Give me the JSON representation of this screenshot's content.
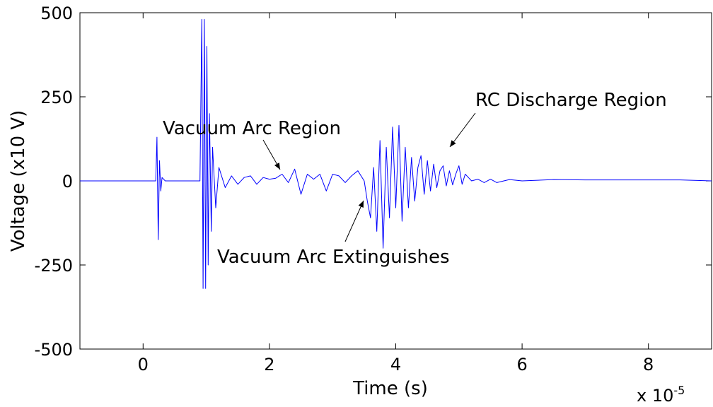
{
  "chart_data": {
    "type": "line",
    "xlabel": "Time (s)",
    "ylabel": "Voltage (x10 V)",
    "x_exponent_base": "x 10",
    "x_exponent_power": "-5",
    "xlim": [
      -1,
      9
    ],
    "ylim": [
      -500,
      500
    ],
    "x_ticks": [
      0,
      2,
      4,
      6,
      8
    ],
    "x_tick_labels": [
      "0",
      "2",
      "4",
      "6",
      "8"
    ],
    "y_ticks": [
      500,
      250,
      0,
      -250,
      -500
    ],
    "y_tick_labels": [
      "500",
      "250",
      "0",
      "-250",
      "-500"
    ],
    "grid": false,
    "series": [
      {
        "color": "#0000ff",
        "x": [
          -1,
          0.1,
          0.2,
          0.22,
          0.24,
          0.26,
          0.28,
          0.3,
          0.35,
          0.4,
          0.5,
          0.6,
          0.8,
          0.9,
          0.93,
          0.95,
          0.97,
          0.99,
          1.01,
          1.03,
          1.05,
          1.08,
          1.1,
          1.15,
          1.2,
          1.3,
          1.4,
          1.5,
          1.6,
          1.7,
          1.8,
          1.9,
          2.0,
          2.1,
          2.2,
          2.3,
          2.4,
          2.5,
          2.6,
          2.7,
          2.8,
          2.9,
          3.0,
          3.1,
          3.2,
          3.3,
          3.4,
          3.5,
          3.55,
          3.6,
          3.65,
          3.7,
          3.75,
          3.8,
          3.85,
          3.9,
          3.95,
          4.0,
          4.05,
          4.1,
          4.15,
          4.2,
          4.25,
          4.3,
          4.35,
          4.4,
          4.45,
          4.5,
          4.55,
          4.6,
          4.65,
          4.7,
          4.75,
          4.8,
          4.85,
          4.9,
          4.95,
          5.0,
          5.05,
          5.1,
          5.15,
          5.2,
          5.3,
          5.4,
          5.5,
          5.6,
          5.8,
          6.0,
          6.5,
          7.0,
          7.5,
          8.0,
          8.5,
          9.0
        ],
        "y": [
          0,
          0,
          0,
          130,
          -175,
          60,
          -30,
          10,
          0,
          0,
          0,
          0,
          0,
          0,
          480,
          -320,
          480,
          -320,
          400,
          -250,
          200,
          -150,
          100,
          -80,
          40,
          -20,
          15,
          -10,
          10,
          15,
          -10,
          10,
          5,
          8,
          20,
          -5,
          35,
          -40,
          20,
          5,
          20,
          -30,
          20,
          15,
          -5,
          15,
          30,
          0,
          -60,
          -110,
          40,
          -150,
          120,
          -200,
          100,
          -110,
          160,
          -80,
          165,
          -120,
          100,
          -80,
          70,
          -60,
          40,
          75,
          -40,
          60,
          -30,
          50,
          -20,
          30,
          45,
          -15,
          30,
          -12,
          20,
          45,
          -10,
          20,
          10,
          0,
          5,
          -5,
          5,
          -5,
          4,
          0,
          4,
          3,
          3,
          3,
          3,
          0
        ]
      }
    ],
    "annotations": [
      {
        "text": "Vacuum Arc Region",
        "x": 2.2,
        "y": 5
      },
      {
        "text": "RC Discharge Region",
        "x": 4.8,
        "y": 50
      },
      {
        "text": "Vacuum Arc Extinguishes",
        "x": 3.5,
        "y": -10
      }
    ]
  }
}
